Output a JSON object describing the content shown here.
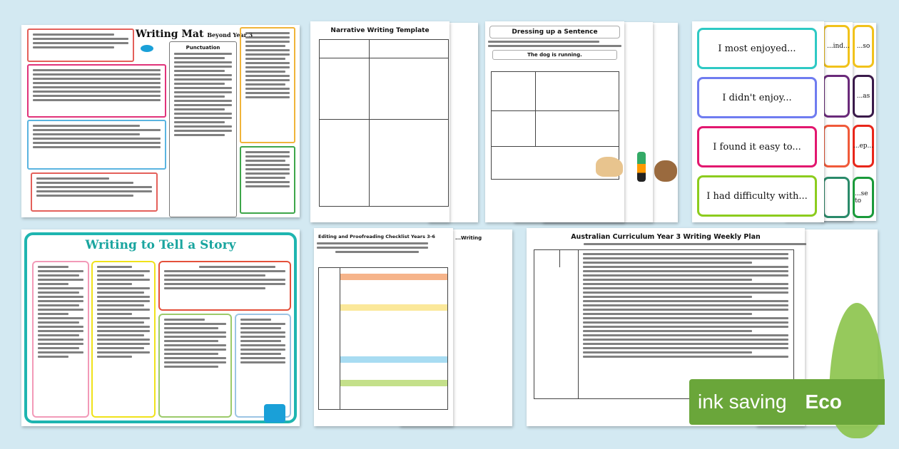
{
  "writing_mat": {
    "title": "Writing Mat",
    "subtitle": "Beyond Year 3",
    "punctuation_header": "Punctuation"
  },
  "story": {
    "title": "Writing to Tell a Story",
    "colors": {
      "frame": "#1fb5b0",
      "title": "#1aa59f"
    }
  },
  "narrative": {
    "title": "Narrative Writing Template"
  },
  "dressing": {
    "title": "Dressing up a Sentence",
    "prompt": "The dog is running."
  },
  "cards": {
    "items": [
      {
        "label": "I most enjoyed...",
        "color": "#2ec9c4"
      },
      {
        "label": "I didn't enjoy...",
        "color": "#6f7cf0"
      },
      {
        "label": "I found it easy to...",
        "color": "#e2176f"
      },
      {
        "label": "I had difficulty with...",
        "color": "#8ccc1e"
      }
    ],
    "back_labels": [
      "...ind...",
      "...so",
      "...as",
      "...ep...",
      "...se to"
    ]
  },
  "editing": {
    "title": "Editing and Proofreading Checklist Years 3-6",
    "back_title": "...Writing"
  },
  "plan": {
    "title": "Australian Curriculum Year 3 Writing Weekly Plan"
  },
  "badge": {
    "text": "ink saving",
    "eco": "Eco",
    "color": "#6aa63a"
  }
}
